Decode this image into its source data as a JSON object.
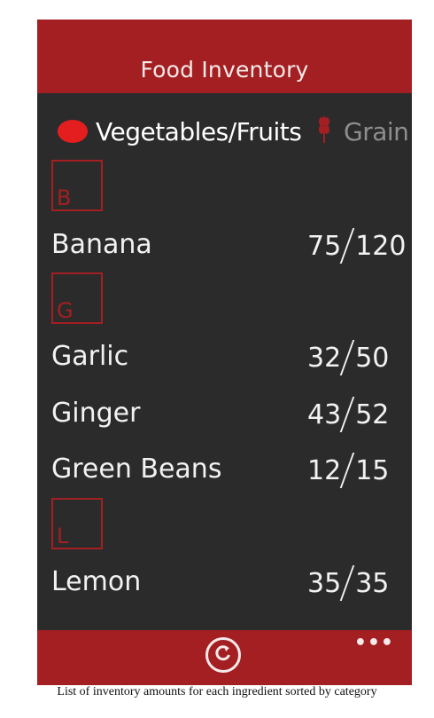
{
  "header": {
    "title": "Food Inventory"
  },
  "tabs": [
    {
      "label": "Vegetables/Fruits",
      "icon": "tomato-icon",
      "active": true
    },
    {
      "label": "Grain",
      "icon": "wheat-icon",
      "active": false
    }
  ],
  "groups": [
    {
      "letter": "B",
      "items": [
        {
          "name": "Banana",
          "current": "75",
          "total": "120"
        }
      ]
    },
    {
      "letter": "G",
      "items": [
        {
          "name": "Garlic",
          "current": "32",
          "total": "50"
        },
        {
          "name": "Ginger",
          "current": "43",
          "total": "52"
        },
        {
          "name": "Green Beans",
          "current": "12",
          "total": "15"
        }
      ]
    },
    {
      "letter": "L",
      "items": [
        {
          "name": "Lemon",
          "current": "35",
          "total": "35"
        }
      ]
    }
  ],
  "appbar": {
    "refresh_icon": "refresh-icon",
    "more_label": "•••"
  },
  "caption": "List of inventory amounts for each ingredient sorted by category",
  "colors": {
    "accent": "#a31f22",
    "background": "#2b2b2b"
  }
}
